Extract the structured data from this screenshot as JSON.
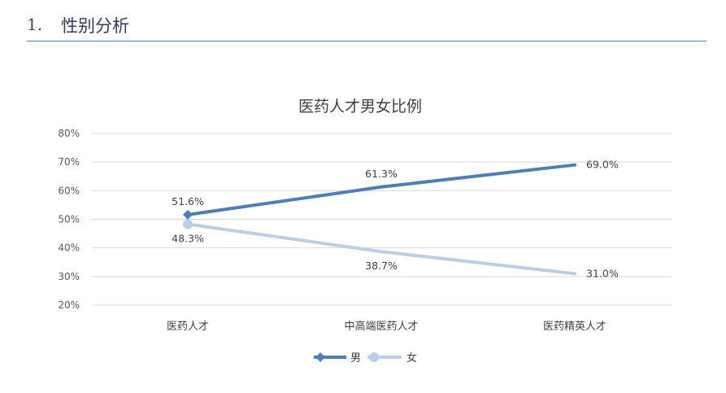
{
  "header": {
    "number": "1.",
    "title": "性别分析"
  },
  "chart_data": {
    "type": "line",
    "title": "医药人才男女比例",
    "categories": [
      "医药人才",
      "中高端医药人才",
      "医药精英人才"
    ],
    "ylim": [
      20,
      80
    ],
    "yticks": [
      "80%",
      "70%",
      "60%",
      "50%",
      "40%",
      "30%",
      "20%"
    ],
    "ytick_values": [
      80,
      70,
      60,
      50,
      40,
      30,
      20
    ],
    "grid": true,
    "legend_position": "bottom",
    "series": [
      {
        "name": "男",
        "values": [
          51.6,
          61.3,
          69.0
        ],
        "labels": [
          "51.6%",
          "61.3%",
          "69.0%"
        ],
        "color": "#4f7db8",
        "marker": "diamond"
      },
      {
        "name": "女",
        "values": [
          48.3,
          38.7,
          31.0
        ],
        "labels": [
          "48.3%",
          "38.7%",
          "31.0%"
        ],
        "color": "#bccde6",
        "marker": "circle"
      }
    ]
  }
}
